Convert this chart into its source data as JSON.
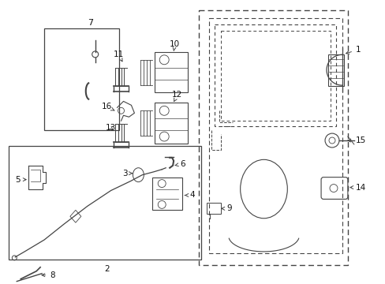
{
  "bg_color": "#ffffff",
  "line_color": "#444444",
  "label_color": "#111111",
  "fig_width": 4.89,
  "fig_height": 3.6,
  "dpi": 100
}
